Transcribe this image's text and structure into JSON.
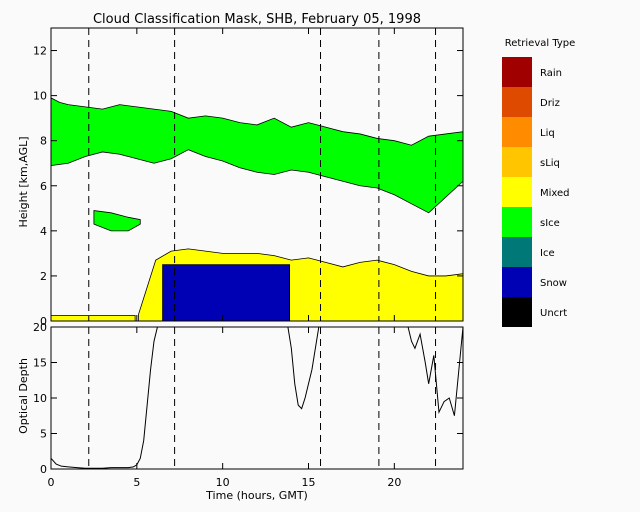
{
  "chart_data": {
    "type": "area",
    "title": "Cloud Classification Mask, SHB, February 05, 1998",
    "xlabel": "Time (hours, GMT)",
    "xlim": [
      0,
      24
    ],
    "xticks": [
      0,
      5,
      10,
      15,
      20
    ],
    "event_times": [
      2.2,
      7.2,
      15.7,
      19.1,
      22.4
    ],
    "mask_panel": {
      "ylabel": "Height [km,AGL]",
      "ylim": [
        0,
        13
      ],
      "yticks": [
        0,
        2,
        4,
        6,
        8,
        10,
        12
      ],
      "regions": [
        {
          "class": "sIce",
          "top": [
            [
              0,
              9.9
            ],
            [
              0.5,
              9.7
            ],
            [
              1,
              9.6
            ],
            [
              2,
              9.5
            ],
            [
              3,
              9.4
            ],
            [
              4,
              9.6
            ],
            [
              5,
              9.5
            ],
            [
              6,
              9.4
            ],
            [
              7,
              9.3
            ],
            [
              8,
              9.0
            ],
            [
              9,
              9.1
            ],
            [
              10,
              9.0
            ],
            [
              11,
              8.8
            ],
            [
              12,
              8.7
            ],
            [
              13,
              9.0
            ],
            [
              14,
              8.6
            ],
            [
              15,
              8.8
            ],
            [
              16,
              8.6
            ],
            [
              17,
              8.4
            ],
            [
              18,
              8.3
            ],
            [
              19,
              8.1
            ],
            [
              20,
              8.0
            ],
            [
              21,
              7.8
            ],
            [
              22,
              8.2
            ],
            [
              23,
              8.3
            ],
            [
              24,
              8.4
            ]
          ],
          "bottom": [
            [
              0,
              6.9
            ],
            [
              1,
              7.0
            ],
            [
              2,
              7.3
            ],
            [
              3,
              7.5
            ],
            [
              4,
              7.4
            ],
            [
              5,
              7.2
            ],
            [
              6,
              7.0
            ],
            [
              7,
              7.2
            ],
            [
              8,
              7.6
            ],
            [
              9,
              7.3
            ],
            [
              10,
              7.1
            ],
            [
              11,
              6.8
            ],
            [
              12,
              6.6
            ],
            [
              13,
              6.5
            ],
            [
              14,
              6.7
            ],
            [
              15,
              6.6
            ],
            [
              16,
              6.4
            ],
            [
              17,
              6.2
            ],
            [
              18,
              6.0
            ],
            [
              19,
              5.9
            ],
            [
              20,
              5.6
            ],
            [
              21,
              5.2
            ],
            [
              22,
              4.8
            ],
            [
              23,
              5.5
            ],
            [
              24,
              6.2
            ]
          ]
        },
        {
          "class": "sIce",
          "top": [
            [
              2.5,
              4.9
            ],
            [
              3.5,
              4.8
            ],
            [
              4.5,
              4.6
            ],
            [
              5.2,
              4.5
            ]
          ],
          "bottom": [
            [
              2.5,
              4.3
            ],
            [
              3.5,
              4.0
            ],
            [
              4.5,
              4.0
            ],
            [
              5.2,
              4.3
            ]
          ]
        },
        {
          "class": "Mixed",
          "top": [
            [
              5.1,
              0.3
            ],
            [
              5.6,
              1.5
            ],
            [
              6.1,
              2.7
            ],
            [
              7,
              3.1
            ],
            [
              8,
              3.2
            ],
            [
              9,
              3.1
            ],
            [
              10,
              3.0
            ],
            [
              11,
              3.0
            ],
            [
              12,
              3.0
            ],
            [
              13,
              2.9
            ],
            [
              14,
              2.7
            ],
            [
              15,
              2.8
            ],
            [
              16,
              2.6
            ],
            [
              17,
              2.4
            ],
            [
              18,
              2.6
            ],
            [
              19,
              2.7
            ],
            [
              20,
              2.5
            ],
            [
              21,
              2.2
            ],
            [
              22,
              2.0
            ],
            [
              23,
              2.0
            ],
            [
              24,
              2.1
            ]
          ],
          "bottom": [
            [
              5.1,
              0
            ],
            [
              24,
              0
            ]
          ]
        },
        {
          "class": "Snow",
          "top": [
            [
              6.5,
              2.5
            ],
            [
              13.9,
              2.5
            ]
          ],
          "bottom": [
            [
              6.5,
              0
            ],
            [
              13.9,
              0
            ]
          ]
        },
        {
          "class": "Mixed",
          "top": [
            [
              0,
              0.25
            ],
            [
              2.5,
              0.25
            ],
            [
              3.8,
              0.25
            ],
            [
              4.9,
              0.25
            ]
          ],
          "bottom": [
            [
              0,
              0
            ],
            [
              4.9,
              0
            ]
          ]
        }
      ]
    },
    "optical_depth_panel": {
      "ylabel": "Optical Depth",
      "ylim": [
        0,
        20
      ],
      "yticks": [
        0,
        5,
        10,
        15,
        20
      ],
      "series": [
        {
          "x": [
            0,
            0.3,
            0.6,
            1,
            1.5,
            2,
            2.5,
            3,
            3.5,
            4,
            4.5,
            4.8,
            5,
            5.2,
            5.4,
            5.6,
            5.8,
            6,
            6.2,
            13.8,
            14,
            14.2,
            14.4,
            14.6,
            14.8,
            15,
            15.2,
            15.4,
            15.6,
            20.8,
            21,
            21.2,
            21.5,
            21.8,
            22,
            22.3,
            22.6,
            22.9,
            23.2,
            23.5,
            23.8,
            24
          ],
          "y": [
            1.5,
            0.7,
            0.4,
            0.3,
            0.2,
            0.1,
            0.1,
            0.1,
            0.2,
            0.2,
            0.2,
            0.3,
            0.6,
            1.5,
            4,
            9,
            14,
            18,
            20,
            20,
            17,
            12,
            9,
            8.5,
            10,
            12,
            14,
            17,
            20,
            20,
            18,
            17,
            19,
            15,
            12,
            16,
            8,
            9.5,
            10,
            7.5,
            15,
            20
          ]
        }
      ]
    },
    "legend": {
      "title": "Retrieval Type",
      "items": [
        {
          "label": "Rain",
          "color": "#a10000"
        },
        {
          "label": "Driz",
          "color": "#dd4a00"
        },
        {
          "label": "Liq",
          "color": "#ff8c00"
        },
        {
          "label": "sLiq",
          "color": "#ffc600"
        },
        {
          "label": "Mixed",
          "color": "#ffff00"
        },
        {
          "label": "sIce",
          "color": "#00ff00"
        },
        {
          "label": "Ice",
          "color": "#007878"
        },
        {
          "label": "Snow",
          "color": "#0000b4"
        },
        {
          "label": "Uncrt",
          "color": "#000000"
        }
      ]
    }
  }
}
